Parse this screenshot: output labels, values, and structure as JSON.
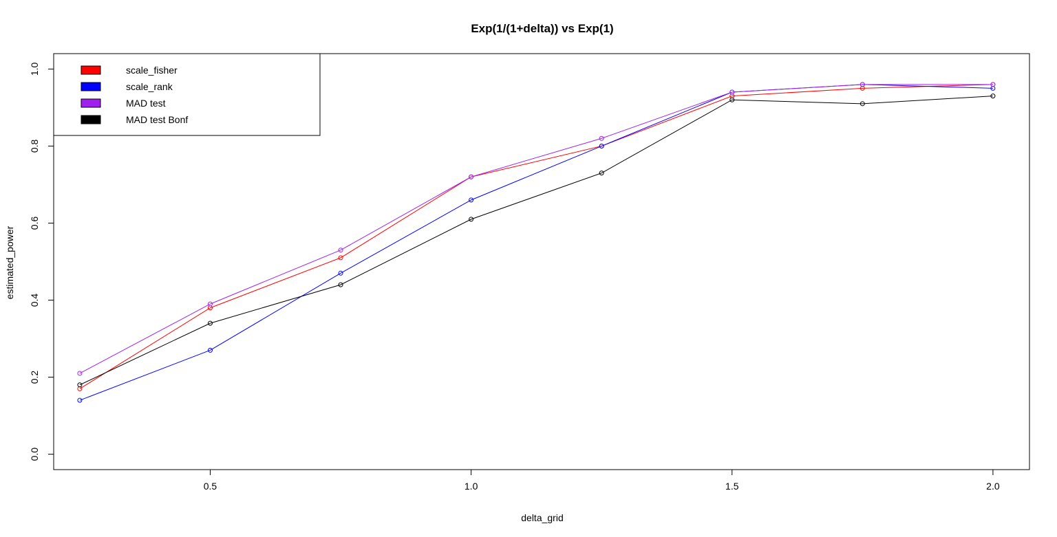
{
  "chart_data": {
    "type": "line",
    "title": "Exp(1/(1+delta)) vs Exp(1)",
    "xlabel": "delta_grid",
    "ylabel": "estimated_power",
    "x": [
      0.25,
      0.5,
      0.75,
      1.0,
      1.25,
      1.5,
      1.75,
      2.0
    ],
    "xlim": [
      0.2,
      2.07
    ],
    "ylim": [
      -0.04,
      1.04
    ],
    "xticks": [
      0.5,
      1.0,
      1.5,
      2.0
    ],
    "xtick_labels": [
      "0.5",
      "1.0",
      "1.5",
      "2.0"
    ],
    "yticks": [
      0.0,
      0.2,
      0.4,
      0.6,
      0.8,
      1.0
    ],
    "ytick_labels": [
      "0.0",
      "0.2",
      "0.4",
      "0.6",
      "0.8",
      "1.0"
    ],
    "grid": false,
    "legend_position": "top-left",
    "series": [
      {
        "name": "scale_fisher",
        "color": "#ff0000",
        "values": [
          0.17,
          0.38,
          0.51,
          0.72,
          0.8,
          0.93,
          0.95,
          0.96
        ]
      },
      {
        "name": "scale_rank",
        "color": "#0000ff",
        "values": [
          0.14,
          0.27,
          0.47,
          0.66,
          0.8,
          0.94,
          0.96,
          0.95
        ]
      },
      {
        "name": "MAD test",
        "color": "#a020f0",
        "values": [
          0.21,
          0.39,
          0.53,
          0.72,
          0.82,
          0.94,
          0.96,
          0.96
        ]
      },
      {
        "name": "MAD test Bonf",
        "color": "#000000",
        "values": [
          0.18,
          0.34,
          0.44,
          0.61,
          0.73,
          0.92,
          0.91,
          0.93
        ]
      }
    ]
  }
}
